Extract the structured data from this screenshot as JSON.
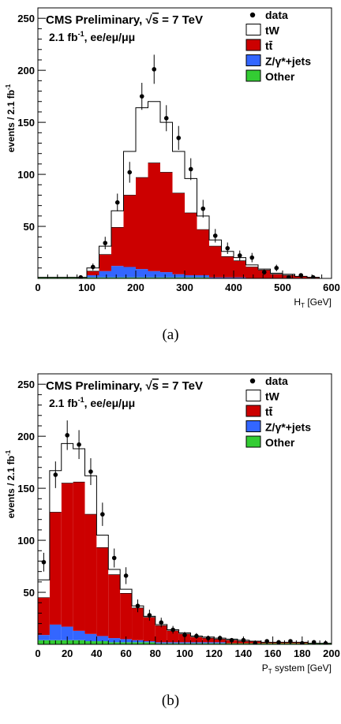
{
  "chart_data": [
    {
      "type": "bar",
      "caption": "(a)",
      "title": "CMS Preliminary, √s = 7 TeV",
      "subtitle": "2.1 fb⁻¹, ee/eμ/μμ",
      "xlabel": "H_T [GeV]",
      "ylabel": "events / 2.1 fb⁻¹",
      "xlim": [
        0,
        600
      ],
      "ylim": [
        0,
        260
      ],
      "xticks": [
        0,
        100,
        200,
        300,
        400,
        500,
        600
      ],
      "yticks": [
        50,
        100,
        150,
        200,
        250
      ],
      "bin_edges": [
        0,
        25,
        50,
        75,
        100,
        125,
        150,
        175,
        200,
        225,
        250,
        275,
        300,
        325,
        350,
        375,
        400,
        425,
        450,
        475,
        500,
        525,
        550,
        575,
        600
      ],
      "series": [
        {
          "name": "Other",
          "color": "#33cc33",
          "values": [
            1,
            1,
            1,
            1,
            1,
            1,
            1,
            1,
            1,
            1,
            1,
            1,
            1,
            1,
            0,
            0,
            0,
            0,
            0,
            0,
            0,
            0,
            0,
            0
          ]
        },
        {
          "name": "Z/γ*+jets",
          "color": "#3366ff",
          "values": [
            0,
            0,
            0,
            0,
            2,
            6,
            11,
            10,
            8,
            6,
            5,
            3,
            2,
            2,
            1,
            1,
            1,
            0,
            0,
            0,
            0,
            0,
            0,
            0
          ]
        },
        {
          "name": "tt̄",
          "color": "#cc0000",
          "values": [
            0,
            0,
            0,
            0,
            4,
            16,
            37,
            69,
            88,
            104,
            96,
            78,
            60,
            44,
            30,
            20,
            16,
            11,
            8,
            4,
            3,
            2,
            1,
            0
          ]
        },
        {
          "name": "tW",
          "color": "#ffffff",
          "values": [
            0,
            0,
            0,
            0,
            3,
            8,
            16,
            42,
            67,
            59,
            48,
            40,
            33,
            13,
            6,
            5,
            3,
            2,
            1,
            1,
            1,
            0,
            0,
            0
          ]
        }
      ],
      "data_points": {
        "name": "data",
        "x": [
          87.5,
          112.5,
          137.5,
          162.5,
          187.5,
          212.5,
          237.5,
          262.5,
          287.5,
          312.5,
          337.5,
          362.5,
          387.5,
          412.5,
          437.5,
          462.5,
          487.5,
          512.5,
          537.5,
          562.5
        ],
        "y": [
          1,
          11,
          34,
          73,
          102,
          175,
          201,
          154,
          135,
          105,
          67,
          41,
          29,
          22,
          20,
          6,
          10,
          1,
          3,
          1
        ],
        "err": [
          1,
          3.3,
          6,
          8.5,
          10,
          13,
          14,
          12.5,
          11.5,
          10.5,
          8.5,
          6.5,
          5.5,
          4.8,
          4.5,
          2.5,
          3.2,
          1,
          1.7,
          1
        ]
      },
      "legend": [
        "data",
        "tW",
        "tt̄",
        "Z/γ*+jets",
        "Other"
      ],
      "legend_position": "top-right",
      "grid": false
    },
    {
      "type": "bar",
      "caption": "(b)",
      "title": "CMS Preliminary, √s = 7 TeV",
      "subtitle": "2.1 fb⁻¹, ee/eμ/μμ",
      "xlabel": "P_T system [GeV]",
      "ylabel": "events / 2.1 fb⁻¹",
      "xlim": [
        0,
        200
      ],
      "ylim": [
        0,
        260
      ],
      "xticks": [
        0,
        20,
        40,
        60,
        80,
        100,
        120,
        140,
        160,
        180,
        200
      ],
      "yticks": [
        50,
        100,
        150,
        200,
        250
      ],
      "bin_edges": [
        0,
        8,
        16,
        24,
        32,
        40,
        48,
        56,
        64,
        72,
        80,
        88,
        96,
        104,
        112,
        120,
        128,
        136,
        144,
        152,
        160,
        168,
        176,
        184,
        192,
        200
      ],
      "series": [
        {
          "name": "Other",
          "color": "#33cc33",
          "values": [
            4,
            4,
            4,
            4,
            3,
            3,
            2,
            2,
            2,
            2,
            1,
            1,
            1,
            1,
            1,
            1,
            1,
            1,
            1,
            1,
            1,
            1,
            1,
            1,
            1
          ]
        },
        {
          "name": "Z/γ*+jets",
          "color": "#3366ff",
          "values": [
            5,
            15,
            13,
            9,
            7,
            5,
            4,
            3,
            2,
            1,
            1,
            1,
            1,
            1,
            1,
            1,
            0,
            0,
            0,
            0,
            0,
            0,
            0,
            0,
            0
          ]
        },
        {
          "name": "tt̄",
          "color": "#cc0000",
          "values": [
            36,
            108,
            138,
            143,
            115,
            85,
            61,
            44,
            31,
            23,
            16,
            11,
            8,
            5,
            4,
            3,
            3,
            2,
            2,
            1,
            1,
            1,
            1,
            0,
            0
          ]
        },
        {
          "name": "tW",
          "color": "#ffffff",
          "values": [
            17,
            40,
            38,
            32,
            37,
            12,
            5,
            4,
            2,
            1,
            1,
            1,
            1,
            1,
            1,
            1,
            1,
            1,
            0,
            0,
            0,
            0,
            0,
            0,
            0
          ]
        }
      ],
      "data_points": {
        "name": "data",
        "x": [
          4,
          12,
          20,
          28,
          36,
          44,
          52,
          60,
          68,
          76,
          84,
          92,
          100,
          108,
          116,
          124,
          132,
          140,
          148,
          156,
          164,
          172,
          180,
          188,
          196
        ],
        "y": [
          79,
          163,
          201,
          192,
          166,
          125,
          83,
          66,
          37,
          28,
          21,
          14,
          9,
          8,
          6,
          6,
          4,
          4,
          1,
          3,
          2,
          3,
          1,
          2,
          1
        ],
        "err": [
          9,
          12.8,
          14.2,
          13.9,
          12.9,
          11.2,
          9.1,
          8.1,
          6.1,
          5.3,
          4.6,
          3.7,
          3,
          2.8,
          2.4,
          2.4,
          2,
          2,
          1,
          1.7,
          1.4,
          1.7,
          1,
          1.4,
          1
        ]
      },
      "legend": [
        "data",
        "tW",
        "tt̄",
        "Z/γ*+jets",
        "Other"
      ],
      "legend_position": "top-right",
      "grid": false
    }
  ]
}
